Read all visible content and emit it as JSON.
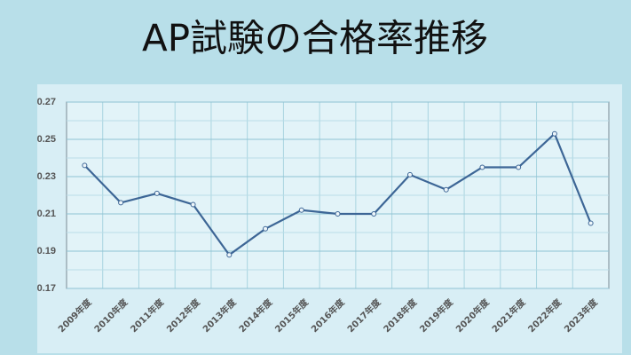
{
  "chart_data": {
    "type": "line",
    "title": "AP試験の合格率推移",
    "categories": [
      "2009年度",
      "2010年度",
      "2011年度",
      "2012年度",
      "2013年度",
      "2014年度",
      "2015年度",
      "2016年度",
      "2017年度",
      "2018年度",
      "2019年度",
      "2020年度",
      "2021年度",
      "2022年度",
      "2023年度"
    ],
    "values": [
      0.236,
      0.216,
      0.221,
      0.215,
      0.188,
      0.202,
      0.212,
      0.21,
      0.21,
      0.231,
      0.223,
      0.235,
      0.235,
      0.253,
      0.205
    ],
    "color": "#3d6696",
    "ylim": [
      0.17,
      0.27
    ],
    "yticks": [
      0.17,
      0.19,
      0.21,
      0.23,
      0.25,
      0.27
    ],
    "grid": true
  }
}
